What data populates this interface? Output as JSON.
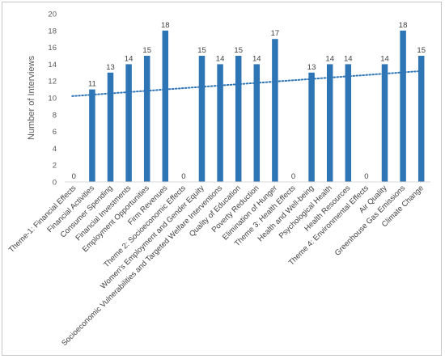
{
  "chart_data": {
    "type": "bar",
    "ylabel": "Number of Interviews",
    "ylim": [
      0,
      20
    ],
    "yticks": [
      0,
      2,
      4,
      6,
      8,
      10,
      12,
      14,
      16,
      18,
      20
    ],
    "grid": false,
    "legend": "none",
    "trendline": {
      "type": "linear",
      "style": "dotted",
      "color": "#2E75B6",
      "start_y": 10.2,
      "end_y": 13.2
    },
    "bar_color": "#2E75B6",
    "categories": [
      "Theme-1: Financial Effects",
      "Financial Activities",
      "Consumer Spending",
      "Financial Investments",
      "Employment Opportunities",
      "Firm Revenues",
      "Theme 2: Socioeconomic Effects",
      "Women's Employment and Gender Equity",
      "Socioeconomic Vulnerabilities and Targeted Welfare Interventions",
      "Quality of Education",
      "Poverty Reduction",
      "Elimination of Hunger",
      "Theme 3: Health Effects",
      "Health and Well-being",
      "Psychological Health",
      "Health Resources",
      "Theme 4: Environmental Effects",
      "Air Quality",
      "Greenhouse Gas Emissions",
      "Climate Change"
    ],
    "values": [
      0,
      11,
      13,
      14,
      15,
      18,
      0,
      15,
      14,
      15,
      14,
      17,
      0,
      13,
      14,
      14,
      0,
      14,
      18,
      15
    ]
  }
}
